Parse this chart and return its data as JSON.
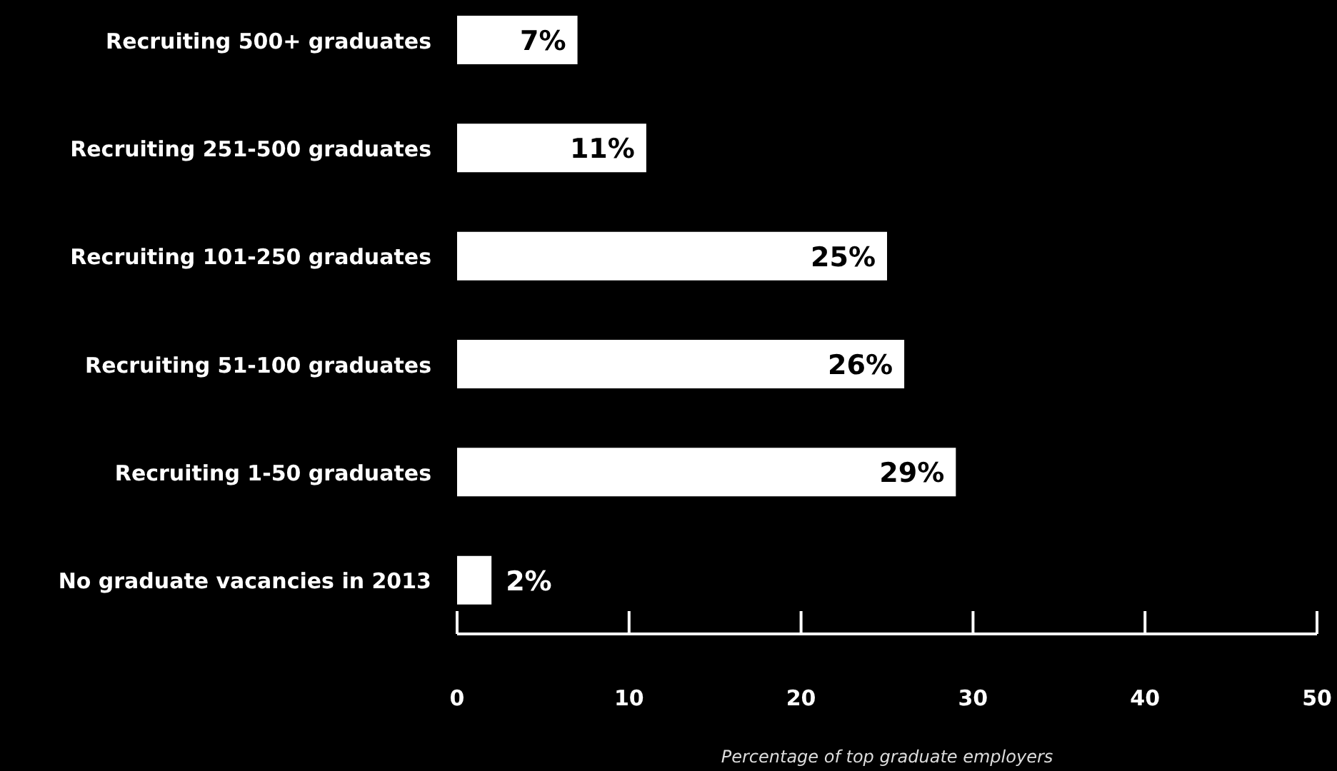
{
  "chart_data": {
    "type": "bar",
    "orientation": "horizontal",
    "categories": [
      "Recruiting 500+ graduates",
      "Recruiting 251-500 graduates",
      "Recruiting 101-250 graduates",
      "Recruiting 51-100 graduates",
      "Recruiting 1-50 graduates",
      "No graduate vacancies in 2013"
    ],
    "values": [
      7,
      11,
      25,
      26,
      29,
      2
    ],
    "value_labels": [
      "7%",
      "11%",
      "25%",
      "26%",
      "29%",
      "2%"
    ],
    "color": "#ffffff",
    "xlim": [
      0,
      50
    ],
    "xticks": [
      0,
      10,
      20,
      30,
      40,
      50
    ],
    "xlabel": "Percentage of top graduate employers",
    "grid": false,
    "legend": false
  }
}
